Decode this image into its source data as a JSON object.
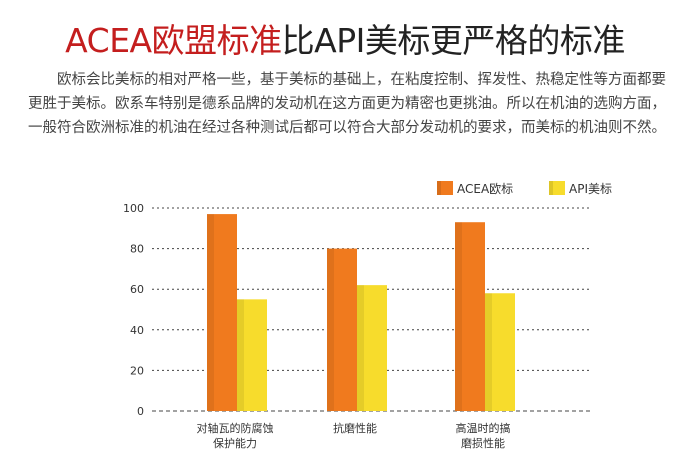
{
  "title": {
    "highlight": "ACEA欧盟标准",
    "rest": "比API美标更严格的标准"
  },
  "paragraph": "欧标会比美标的相对严格一些，基于美标的基础上，在粘度控制、挥发性、热稳定性等方面都要更胜于美标。欧系车特别是德系品牌的发动机在这方面更为精密也更挑油。所以在机油的选购方面，一般符合欧洲标准的机油在经过各种测试后都可以符合大部分发动机的要求，而美标的机油则不然。",
  "colors": {
    "title_highlight": "#c41e1e",
    "acea": "#f07a1e",
    "api": "#f7dc2c"
  },
  "chart_data": {
    "type": "bar",
    "categories": [
      [
        "对轴瓦的防腐蚀",
        "保护能力"
      ],
      [
        "抗磨性能"
      ],
      [
        "高温时的搞",
        "磨损性能"
      ]
    ],
    "series": [
      {
        "name": "ACEA欧标",
        "values": [
          97,
          80,
          93
        ]
      },
      {
        "name": "API美标",
        "values": [
          55,
          62,
          58
        ]
      }
    ],
    "ylim": [
      0,
      100
    ],
    "yticks": [
      0,
      20,
      40,
      60,
      80,
      100
    ],
    "grid": true,
    "legend": "top-right"
  }
}
